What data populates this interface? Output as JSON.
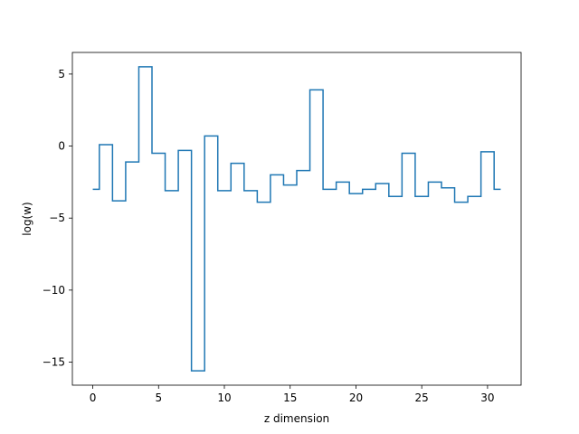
{
  "chart_data": {
    "type": "line",
    "drawstyle": "steps-mid",
    "title": "",
    "xlabel": "z dimension",
    "ylabel": "log(w)",
    "xlim": [
      -1.55,
      32.55
    ],
    "ylim": [
      -16.6,
      6.5
    ],
    "xticks": [
      0,
      5,
      10,
      15,
      20,
      25,
      30
    ],
    "yticks": [
      -15,
      -10,
      -5,
      0,
      5
    ],
    "ytick_labels": [
      "−15",
      "−10",
      "−5",
      "0",
      "5"
    ],
    "grid": false,
    "legend": false,
    "series": [
      {
        "color": "#1f77b4",
        "x": [
          0,
          1,
          2,
          3,
          4,
          5,
          6,
          7,
          8,
          9,
          10,
          11,
          12,
          13,
          14,
          15,
          16,
          17,
          18,
          19,
          20,
          21,
          22,
          23,
          24,
          25,
          26,
          27,
          28,
          29,
          30,
          31
        ],
        "values": [
          -3.0,
          0.1,
          -3.8,
          -1.1,
          5.5,
          -0.5,
          -3.1,
          -0.3,
          -15.6,
          0.7,
          -3.1,
          -1.2,
          -3.1,
          -3.9,
          -2.0,
          -2.7,
          -1.7,
          3.9,
          -3.0,
          -2.5,
          -3.3,
          -3.0,
          -2.6,
          -3.5,
          -0.5,
          -3.5,
          -2.5,
          -2.9,
          -3.9,
          -3.5,
          -0.4,
          -3.0
        ]
      }
    ]
  }
}
